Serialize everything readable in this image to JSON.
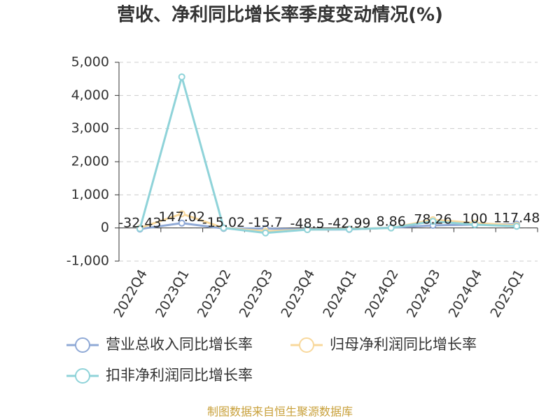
{
  "chart_data": {
    "type": "line",
    "title": "营收、净利同比增长率季度变动情况(%)",
    "categories": [
      "2022Q4",
      "2023Q1",
      "2023Q2",
      "2023Q3",
      "2023Q4",
      "2024Q1",
      "2024Q2",
      "2024Q3",
      "2024Q4",
      "2025Q1"
    ],
    "series": [
      {
        "name": "营业总收入同比增长率",
        "color": "#8fa9d6",
        "values": [
          -32.43,
          147.02,
          -15.02,
          -15.7,
          -48.5,
          -42.99,
          8.86,
          78.26,
          100,
          117.48
        ]
      },
      {
        "name": "归母净利润同比增长率",
        "color": "#f8d89c",
        "values": [
          0,
          430,
          0,
          -100,
          -50,
          -30,
          0,
          250,
          150,
          80
        ]
      },
      {
        "name": "扣非净利润同比增长率",
        "color": "#8fd3d9",
        "values": [
          -20,
          4560,
          0,
          -150,
          -50,
          -40,
          0,
          200,
          100,
          50
        ]
      }
    ],
    "ylim": [
      -1000,
      5000
    ],
    "yticks": [
      {
        "value": -1000,
        "label": "-1,000"
      },
      0,
      {
        "value": 1000,
        "label": "1,000"
      },
      {
        "value": 2000,
        "label": "2,000"
      },
      {
        "value": 3000,
        "label": "3,000"
      },
      {
        "value": 4000,
        "label": "4,000"
      },
      {
        "value": 5000,
        "label": "5,000"
      }
    ],
    "grid": true,
    "source": "制图数据来自恒生聚源数据库"
  }
}
